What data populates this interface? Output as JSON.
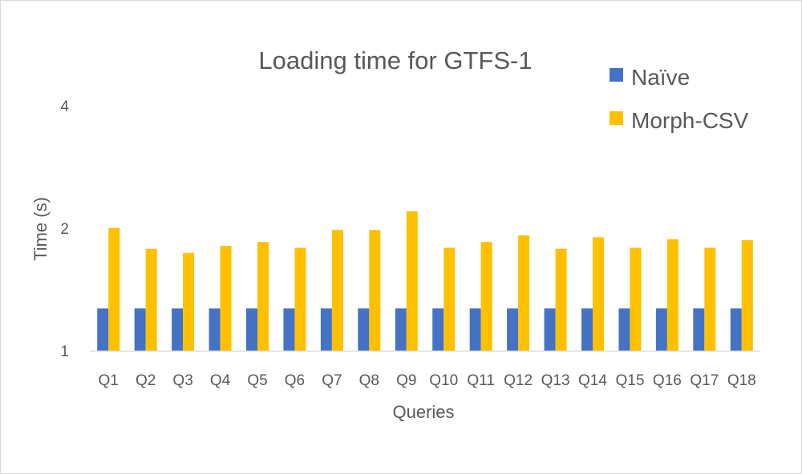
{
  "chart_data": {
    "type": "bar",
    "title": "Loading time for GTFS-1",
    "xlabel": "Queries",
    "ylabel": "Time (s)",
    "y_scale": "log",
    "ylim": [
      1,
      4
    ],
    "y_ticks": [
      1,
      2,
      4
    ],
    "grid": false,
    "legend_position": "top-right",
    "categories": [
      "Q1",
      "Q2",
      "Q3",
      "Q4",
      "Q5",
      "Q6",
      "Q7",
      "Q8",
      "Q9",
      "Q10",
      "Q11",
      "Q12",
      "Q13",
      "Q14",
      "Q15",
      "Q16",
      "Q17",
      "Q18"
    ],
    "series": [
      {
        "name": "Naïve",
        "color": "#4472c4",
        "values": [
          1.27,
          1.27,
          1.27,
          1.27,
          1.27,
          1.27,
          1.27,
          1.27,
          1.27,
          1.27,
          1.27,
          1.27,
          1.27,
          1.27,
          1.27,
          1.27,
          1.27,
          1.27
        ]
      },
      {
        "name": "Morph-CSV",
        "color": "#ffc000",
        "values": [
          2.0,
          1.78,
          1.74,
          1.81,
          1.85,
          1.79,
          1.98,
          1.98,
          2.2,
          1.79,
          1.85,
          1.92,
          1.78,
          1.9,
          1.79,
          1.88,
          1.79,
          1.87
        ]
      }
    ]
  }
}
